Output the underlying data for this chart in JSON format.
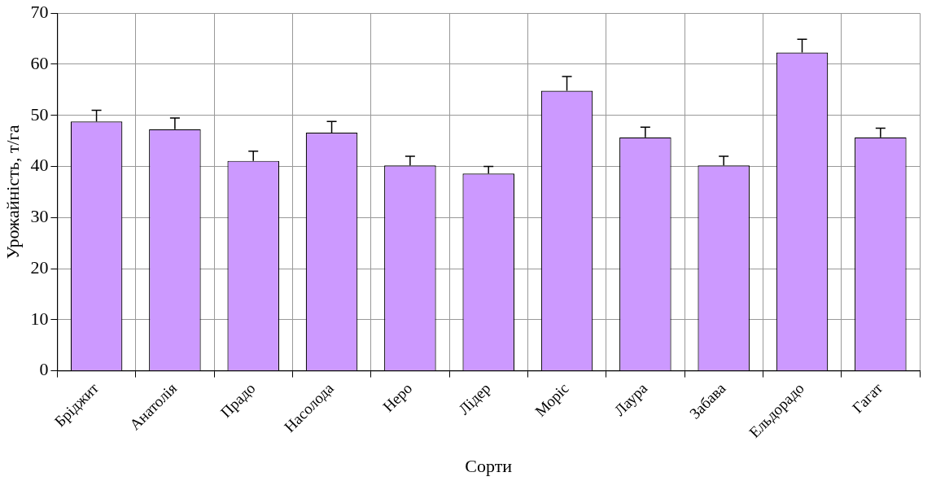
{
  "chart_data": {
    "type": "bar",
    "xlabel": "Сорти",
    "ylabel": "Урожайність, т/га",
    "categories": [
      "Бріджит",
      "Анатолія",
      "Прадо",
      "Насолода",
      "Неро",
      "Лідер",
      "Моріс",
      "Лаура",
      "Забава",
      "Ельдорадо",
      "Гагат"
    ],
    "values": [
      48.8,
      47.3,
      41.1,
      46.6,
      40.2,
      38.6,
      54.8,
      45.7,
      40.2,
      62.3,
      45.7
    ],
    "errors": [
      [
        48.8,
        51.0
      ],
      [
        47.3,
        49.5
      ],
      [
        41.1,
        43.0
      ],
      [
        46.6,
        48.8
      ],
      [
        40.2,
        42.0
      ],
      [
        38.6,
        40.0
      ],
      [
        54.8,
        57.6
      ],
      [
        45.7,
        47.7
      ],
      [
        40.2,
        42.0
      ],
      [
        62.3,
        64.9
      ],
      [
        45.7,
        47.5
      ]
    ],
    "color": "#cc99ff",
    "ylim": [
      0,
      70
    ],
    "yticks": [
      0,
      10,
      20,
      30,
      40,
      50,
      60,
      70
    ],
    "grid": true,
    "legend": false
  }
}
